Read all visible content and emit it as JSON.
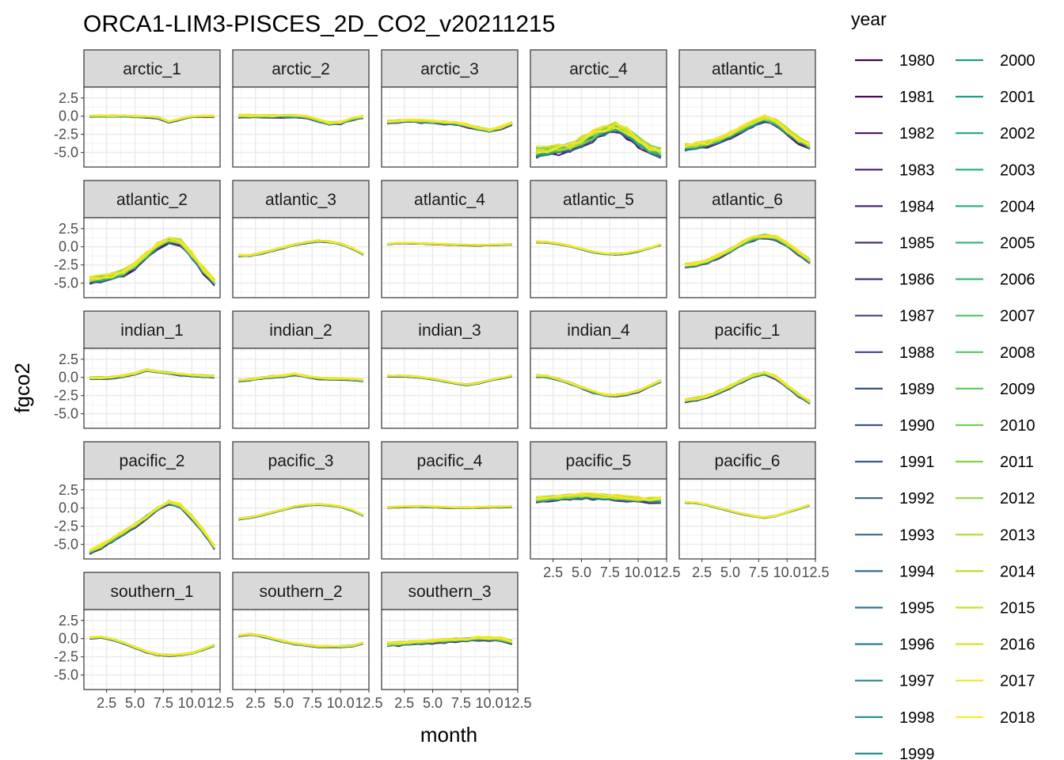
{
  "chart_data": {
    "type": "line",
    "title": "ORCA1-LIM3-PISCES_2D_CO2_v20211215",
    "xlabel": "month",
    "ylabel": "fgco2",
    "xlim": [
      0.5,
      12.5
    ],
    "ylim": [
      -7.0,
      4.0
    ],
    "x_ticks": [
      2.5,
      5.0,
      7.5,
      10.0,
      12.5
    ],
    "x_tick_labels": [
      "2.5",
      "5.0",
      "7.5",
      "10.0",
      "12.5"
    ],
    "y_ticks": [
      2.5,
      0.0,
      -2.5,
      -5.0
    ],
    "y_tick_labels": [
      "2.5",
      "0.0",
      "-2.5",
      "-5.0"
    ],
    "grid": true,
    "legend_title": "year",
    "legend_position": "right",
    "years": [
      "1980",
      "1981",
      "1982",
      "1983",
      "1984",
      "1985",
      "1986",
      "1987",
      "1988",
      "1989",
      "1990",
      "1991",
      "1992",
      "1993",
      "1994",
      "1995",
      "1996",
      "1997",
      "1998",
      "1999",
      "2000",
      "2001",
      "2002",
      "2003",
      "2004",
      "2005",
      "2006",
      "2007",
      "2008",
      "2009",
      "2010",
      "2011",
      "2012",
      "2013",
      "2014",
      "2015",
      "2016",
      "2017",
      "2018"
    ],
    "months": [
      1,
      2,
      3,
      4,
      5,
      6,
      7,
      8,
      9,
      10,
      11,
      12
    ],
    "panels": [
      {
        "name": "arctic_1",
        "base": [
          0,
          0,
          0,
          0,
          -0.05,
          -0.1,
          -0.2,
          -0.8,
          -0.4,
          -0.05,
          0,
          0
        ],
        "spread": 0.15
      },
      {
        "name": "arctic_2",
        "base": [
          0,
          0,
          0,
          0,
          0,
          0,
          -0.1,
          -0.6,
          -1.0,
          -0.9,
          -0.4,
          -0.1
        ],
        "spread": 0.25
      },
      {
        "name": "arctic_3",
        "base": [
          -0.8,
          -0.7,
          -0.6,
          -0.7,
          -0.8,
          -0.9,
          -1.0,
          -1.3,
          -1.7,
          -2.0,
          -1.6,
          -1.0
        ],
        "spread": 0.3
      },
      {
        "name": "arctic_4",
        "base": [
          -5.0,
          -4.8,
          -4.6,
          -4.2,
          -3.6,
          -2.8,
          -2.0,
          -1.6,
          -2.3,
          -3.5,
          -4.6,
          -5.0
        ],
        "spread": 0.9
      },
      {
        "name": "atlantic_1",
        "base": [
          -4.3,
          -4.1,
          -3.8,
          -3.3,
          -2.6,
          -1.8,
          -1.0,
          -0.3,
          -0.9,
          -2.1,
          -3.3,
          -4.1
        ],
        "spread": 0.6
      },
      {
        "name": "atlantic_2",
        "base": [
          -4.6,
          -4.4,
          -4.1,
          -3.6,
          -2.6,
          -1.2,
          0.2,
          0.9,
          0.6,
          -1.2,
          -3.2,
          -4.8
        ],
        "spread": 0.6
      },
      {
        "name": "atlantic_3",
        "base": [
          -1.2,
          -1.2,
          -0.9,
          -0.5,
          -0.1,
          0.3,
          0.6,
          0.8,
          0.7,
          0.4,
          -0.2,
          -1.0
        ],
        "spread": 0.15
      },
      {
        "name": "atlantic_4",
        "base": [
          0.4,
          0.5,
          0.5,
          0.45,
          0.4,
          0.35,
          0.3,
          0.25,
          0.2,
          0.25,
          0.3,
          0.35
        ],
        "spread": 0.1
      },
      {
        "name": "atlantic_5",
        "base": [
          0.7,
          0.6,
          0.4,
          0.1,
          -0.3,
          -0.7,
          -0.95,
          -1.0,
          -0.9,
          -0.6,
          -0.2,
          0.3
        ],
        "spread": 0.12
      },
      {
        "name": "atlantic_6",
        "base": [
          -2.6,
          -2.4,
          -2.0,
          -1.3,
          -0.5,
          0.4,
          1.1,
          1.4,
          1.2,
          0.3,
          -0.8,
          -2.0
        ],
        "spread": 0.4
      },
      {
        "name": "indian_1",
        "base": [
          -0.1,
          -0.1,
          0.0,
          0.2,
          0.5,
          1.0,
          0.8,
          0.6,
          0.4,
          0.3,
          0.2,
          0.1
        ],
        "spread": 0.2
      },
      {
        "name": "indian_2",
        "base": [
          -0.4,
          -0.3,
          -0.1,
          0.1,
          0.2,
          0.4,
          0.1,
          -0.1,
          -0.2,
          -0.2,
          -0.3,
          -0.4
        ],
        "spread": 0.2
      },
      {
        "name": "indian_3",
        "base": [
          0.2,
          0.2,
          0.15,
          0.0,
          -0.2,
          -0.5,
          -0.8,
          -1.0,
          -0.8,
          -0.4,
          -0.1,
          0.2
        ],
        "spread": 0.12
      },
      {
        "name": "indian_4",
        "base": [
          0.2,
          0.1,
          -0.3,
          -0.8,
          -1.4,
          -2.0,
          -2.4,
          -2.5,
          -2.3,
          -1.9,
          -1.2,
          -0.5
        ],
        "spread": 0.2
      },
      {
        "name": "pacific_1",
        "base": [
          -3.2,
          -3.0,
          -2.6,
          -2.0,
          -1.3,
          -0.5,
          0.2,
          0.6,
          0.0,
          -1.2,
          -2.4,
          -3.4
        ],
        "spread": 0.3
      },
      {
        "name": "pacific_2",
        "base": [
          -6.0,
          -5.3,
          -4.4,
          -3.4,
          -2.4,
          -1.3,
          -0.1,
          0.8,
          0.3,
          -1.3,
          -3.2,
          -5.4
        ],
        "spread": 0.4
      },
      {
        "name": "pacific_3",
        "base": [
          -1.5,
          -1.3,
          -1.0,
          -0.6,
          -0.2,
          0.2,
          0.4,
          0.5,
          0.4,
          0.2,
          -0.3,
          -1.0
        ],
        "spread": 0.12
      },
      {
        "name": "pacific_4",
        "base": [
          0.1,
          0.15,
          0.2,
          0.2,
          0.15,
          0.1,
          0.05,
          0.05,
          0.1,
          0.15,
          0.15,
          0.2
        ],
        "spread": 0.12
      },
      {
        "name": "pacific_5",
        "base": [
          1.2,
          1.3,
          1.4,
          1.5,
          1.6,
          1.6,
          1.5,
          1.4,
          1.3,
          1.2,
          1.1,
          1.1
        ],
        "spread": 0.5
      },
      {
        "name": "pacific_6",
        "base": [
          0.8,
          0.7,
          0.4,
          0.0,
          -0.4,
          -0.8,
          -1.1,
          -1.3,
          -1.1,
          -0.6,
          -0.1,
          0.4
        ],
        "spread": 0.1
      },
      {
        "name": "southern_1",
        "base": [
          0.1,
          0.2,
          -0.1,
          -0.6,
          -1.2,
          -1.8,
          -2.2,
          -2.3,
          -2.2,
          -2.0,
          -1.5,
          -0.9
        ],
        "spread": 0.15
      },
      {
        "name": "southern_2",
        "base": [
          0.4,
          0.6,
          0.4,
          0.0,
          -0.4,
          -0.7,
          -0.9,
          -1.1,
          -1.1,
          -1.1,
          -1.0,
          -0.6
        ],
        "spread": 0.15
      },
      {
        "name": "southern_3",
        "base": [
          -0.8,
          -0.7,
          -0.6,
          -0.5,
          -0.4,
          -0.3,
          -0.2,
          -0.1,
          0.0,
          0.0,
          -0.1,
          -0.5
        ],
        "spread": 0.35
      }
    ]
  }
}
